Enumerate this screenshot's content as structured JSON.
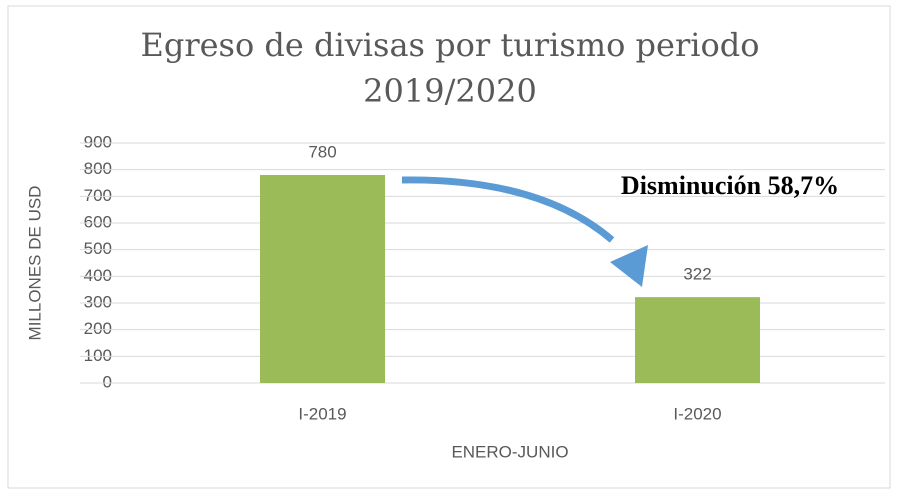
{
  "chart_data": {
    "type": "bar",
    "title": "Egreso de divisas por turismo periodo 2019/2020",
    "categories": [
      "I-2019",
      "I-2020"
    ],
    "values": [
      780,
      322
    ],
    "color": "#9bbb59",
    "ylim": [
      0,
      900
    ],
    "yticks": [
      0,
      100,
      200,
      300,
      400,
      500,
      600,
      700,
      800,
      900
    ],
    "grid": true,
    "y_label": "MILLONES DE USD",
    "x_label": "ENERO-JUNIO",
    "annotation": "Disminución 58,7%"
  }
}
